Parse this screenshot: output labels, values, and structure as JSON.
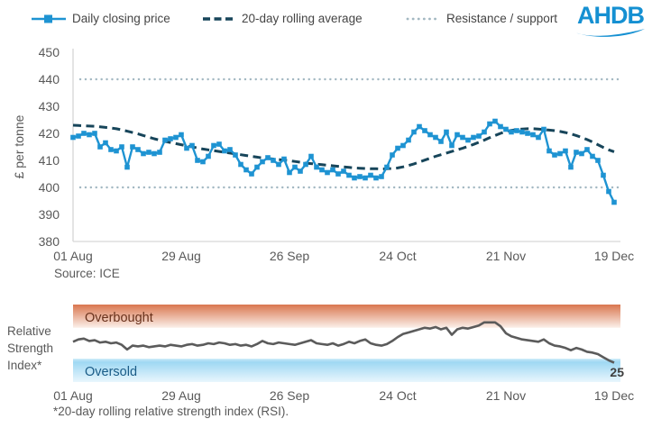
{
  "legend": {
    "items": [
      {
        "label": "Daily closing price",
        "swatch": "line-with-square-marker"
      },
      {
        "label": "20-day rolling average",
        "swatch": "dashed-line"
      },
      {
        "label": "Resistance / support",
        "swatch": "dotted-line"
      }
    ]
  },
  "logo": {
    "text": "AHDB",
    "icon": "ahdb-wave-swoosh"
  },
  "colors": {
    "price_line": "#1E93D2",
    "rolling_average_line": "#17455A",
    "resistance_support_line": "#A3B8C2",
    "rsi_line": "#5B5B5B",
    "axis_text": "#595959",
    "legend_text": "#454545",
    "axis_line": "#D6D6D6",
    "logo_blue": "#1590D2",
    "overbought_band_top": "#D9764F",
    "overbought_band_bottom": "#FBF0EA",
    "oversold_band_edge": "#C6E8F8",
    "oversold_band_main": "#9FD8F3",
    "oversold_band_bottom": "#E9F6FD",
    "overbought_text": "#69321C",
    "oversold_text": "#1A5C87",
    "end_value_text": "#3F3F3F"
  },
  "chart_data": [
    {
      "type": "line",
      "name": "daily-price-chart",
      "ylabel": "£ per tonne",
      "ylim": [
        380,
        450
      ],
      "yticks": [
        380,
        390,
        400,
        410,
        420,
        430,
        440,
        450
      ],
      "x_tick_labels": [
        "01 Aug",
        "29 Aug",
        "26 Sep",
        "24 Oct",
        "21 Nov",
        "19 Dec"
      ],
      "grid": "off",
      "resistance_level": 440,
      "support_level": 400,
      "source": "Source: ICE",
      "series": [
        {
          "name": "Daily closing price",
          "values": [
            418.5,
            419,
            420,
            419.5,
            420,
            415,
            416.5,
            414,
            413.5,
            415,
            407.5,
            415,
            414,
            412.5,
            413,
            412.5,
            413,
            417.5,
            418,
            418.5,
            419.5,
            414.5,
            415.5,
            410,
            409.5,
            411.5,
            415.5,
            416,
            413.5,
            414,
            412,
            408.5,
            406.5,
            405,
            407.5,
            409.5,
            411,
            410,
            408.5,
            410.5,
            405.5,
            407.5,
            406,
            408.5,
            411.5,
            407.5,
            406.5,
            405.5,
            406.5,
            405,
            406,
            404.5,
            403.5,
            404,
            403.5,
            404.5,
            403.5,
            404,
            407.5,
            412,
            414.5,
            415.5,
            417.5,
            420.5,
            422.5,
            421,
            419.5,
            418.5,
            417,
            420.5,
            415.5,
            419.5,
            418.5,
            417.5,
            418.5,
            419,
            420.5,
            423.5,
            424.5,
            422.5,
            421.5,
            420.5,
            421,
            420.5,
            420,
            419.5,
            418.5,
            421.5,
            413.5,
            412,
            412.5,
            413.5,
            407.5,
            413,
            412.5,
            414,
            411.5,
            410,
            404.5,
            398.5,
            394.5
          ]
        },
        {
          "name": "20-day rolling average",
          "values": [
            423,
            422.9,
            422.8,
            422.7,
            422.6,
            422.4,
            422.2,
            422,
            421.7,
            421.3,
            420.8,
            420.3,
            419.8,
            419.2,
            418.6,
            418,
            417.5,
            417,
            416.6,
            416.2,
            415.8,
            415.4,
            415,
            414.6,
            414.2,
            413.9,
            413.6,
            413.3,
            413,
            412.7,
            412.4,
            412.1,
            411.8,
            411.5,
            411.2,
            410.9,
            410.7,
            410.5,
            410.3,
            410.1,
            409.9,
            409.6,
            409.3,
            409,
            408.8,
            408.6,
            408.4,
            408.2,
            408,
            407.8,
            407.6,
            407.4,
            407.2,
            407.1,
            407,
            406.9,
            406.9,
            406.8,
            406.9,
            407,
            407.2,
            407.6,
            408.1,
            408.7,
            409.4,
            410.1,
            410.8,
            411.5,
            412.1,
            412.7,
            413.3,
            413.9,
            414.5,
            415.2,
            415.9,
            416.7,
            417.5,
            418.4,
            419.2,
            420,
            420.7,
            421.1,
            421.4,
            421.6,
            421.7,
            421.7,
            421.6,
            421.4,
            421.2,
            421,
            420.7,
            420.3,
            419.8,
            419.2,
            418.5,
            417.7,
            416.8,
            415.8,
            414.8,
            413.9,
            413.2
          ]
        }
      ]
    },
    {
      "type": "line",
      "name": "rsi-chart",
      "axis_label_lines": [
        "Relative",
        "Strength",
        "Index*"
      ],
      "ylim": [
        0,
        100
      ],
      "bands": [
        {
          "label": "Overbought",
          "from": 70,
          "to": 100
        },
        {
          "label": "Oversold",
          "from": 0,
          "to": 30
        }
      ],
      "x_tick_labels": [
        "01 Aug",
        "29 Aug",
        "26 Sep",
        "24 Oct",
        "21 Nov",
        "19 Dec"
      ],
      "end_value_label": "25",
      "footnote": "*20-day rolling relative strength index (RSI).",
      "series": [
        {
          "name": "20-day rolling RSI",
          "values": [
            52,
            55,
            56,
            53,
            54,
            51,
            52,
            50,
            51,
            48,
            42,
            47,
            46,
            47,
            45,
            46,
            47,
            46,
            48,
            47,
            46,
            48,
            49,
            47,
            48,
            50,
            49,
            51,
            50,
            48,
            49,
            47,
            48,
            46,
            49,
            53,
            50,
            49,
            51,
            50,
            49,
            48,
            50,
            52,
            54,
            50,
            49,
            48,
            50,
            47,
            49,
            52,
            50,
            53,
            55,
            50,
            48,
            47,
            49,
            53,
            58,
            62,
            64,
            66,
            68,
            70,
            69,
            71,
            68,
            70,
            61,
            68,
            70,
            69,
            71,
            73,
            77,
            77,
            77,
            72,
            63,
            59,
            57,
            55,
            54,
            53,
            52,
            55,
            50,
            47,
            46,
            44,
            41,
            44,
            42,
            39,
            38,
            36,
            32,
            28,
            25
          ]
        }
      ]
    }
  ]
}
